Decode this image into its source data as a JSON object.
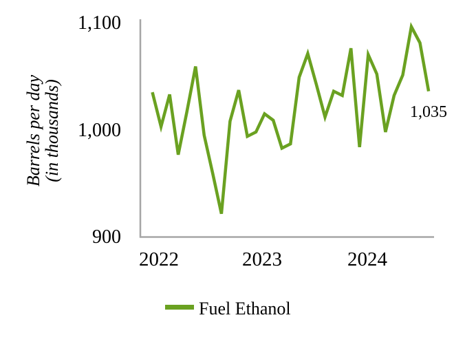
{
  "chart_data": {
    "type": "line",
    "title": "",
    "ylabel": [
      "Barrels per day",
      "(in thousands)"
    ],
    "xlabel": "",
    "categories": [
      "Jan 2022",
      "Feb 2022",
      "Mar 2022",
      "Apr 2022",
      "May 2022",
      "Jun 2022",
      "Jul 2022",
      "Aug 2022",
      "Sep 2022",
      "Oct 2022",
      "Nov 2022",
      "Dec 2022",
      "Jan 2023",
      "Feb 2023",
      "Mar 2023",
      "Apr 2023",
      "May 2023",
      "Jun 2023",
      "Jul 2023",
      "Aug 2023",
      "Sep 2023",
      "Oct 2023",
      "Nov 2023",
      "Dec 2023",
      "Jan 2024",
      "Feb 2024",
      "Mar 2024",
      "Apr 2024",
      "May 2024",
      "Jun 2024",
      "Jul 2024",
      "Aug 2024",
      "Sep 2024"
    ],
    "series": [
      {
        "name": "Fuel Ethanol",
        "color": "#6AA121",
        "values": [
          1034,
          1002,
          1032,
          976,
          1016,
          1058,
          994,
          958,
          921,
          1007,
          1036,
          993,
          997,
          1014,
          1008,
          982,
          986,
          1048,
          1070,
          1041,
          1011,
          1035,
          1031,
          1075,
          983,
          1069,
          1051,
          997,
          1031,
          1050,
          1095,
          1080,
          1035
        ]
      }
    ],
    "ylim": [
      900,
      1100
    ],
    "ytick_values": [
      1100,
      1000,
      900
    ],
    "ytick_labels": [
      "1,100",
      "1,000",
      "900"
    ],
    "xtick_labels": [
      "2022",
      "2023",
      "2024"
    ],
    "grid": false,
    "axis_color": "#A6A6A6",
    "legend_position": "bottom",
    "legend": {
      "entries": [
        {
          "label": "Fuel Ethanol",
          "color": "#6AA121"
        }
      ]
    },
    "annotation": {
      "text": "1,035",
      "point": "Sep 2024",
      "value": 1035
    }
  }
}
